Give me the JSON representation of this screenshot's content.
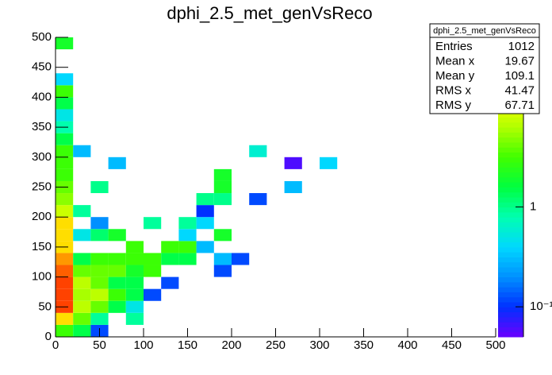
{
  "chart_data": {
    "type": "heatmap",
    "title": "dphi_2.5_met_genVsReco",
    "xbins": [
      0,
      20,
      40,
      60,
      80,
      100,
      120,
      140,
      160,
      180,
      200,
      220,
      240,
      260,
      280,
      300,
      320,
      340,
      360,
      380,
      400,
      420,
      440,
      460,
      480,
      500
    ],
    "ybins": [
      0,
      20,
      40,
      60,
      80,
      100,
      120,
      140,
      160,
      180,
      200,
      220,
      240,
      260,
      280,
      300,
      320,
      340,
      360,
      380,
      400,
      420,
      440,
      460,
      480,
      500
    ],
    "xlim": [
      0,
      500
    ],
    "ylim": [
      0,
      500
    ],
    "xticks": [
      0,
      50,
      100,
      150,
      200,
      250,
      300,
      350,
      400,
      450,
      500
    ],
    "yticks": [
      0,
      50,
      100,
      150,
      200,
      250,
      300,
      350,
      400,
      450,
      500
    ],
    "zlim": [
      0.05,
      50
    ],
    "zlog": true,
    "zticks": [
      {
        "value": 0.1,
        "label": "10⁻¹"
      },
      1
    ],
    "palette": [
      "#6a00ff",
      "#0030ff",
      "#0090ff",
      "#00d8ff",
      "#00ffb0",
      "#00ff40",
      "#40ff00",
      "#b0ff00",
      "#ffff00",
      "#ff8000",
      "#ff0000"
    ],
    "cells": [
      {
        "x": 0,
        "y": 0,
        "z": 3
      },
      {
        "x": 0,
        "y": 20,
        "z": 15
      },
      {
        "x": 0,
        "y": 40,
        "z": 35
      },
      {
        "x": 0,
        "y": 60,
        "z": 35
      },
      {
        "x": 0,
        "y": 80,
        "z": 35
      },
      {
        "x": 0,
        "y": 100,
        "z": 30
      },
      {
        "x": 0,
        "y": 120,
        "z": 22
      },
      {
        "x": 0,
        "y": 140,
        "z": 15
      },
      {
        "x": 0,
        "y": 160,
        "z": 15
      },
      {
        "x": 0,
        "y": 180,
        "z": 15
      },
      {
        "x": 0,
        "y": 200,
        "z": 8
      },
      {
        "x": 0,
        "y": 220,
        "z": 5
      },
      {
        "x": 0,
        "y": 240,
        "z": 4
      },
      {
        "x": 0,
        "y": 260,
        "z": 3
      },
      {
        "x": 0,
        "y": 280,
        "z": 3
      },
      {
        "x": 0,
        "y": 300,
        "z": 3
      },
      {
        "x": 0,
        "y": 320,
        "z": 1.5
      },
      {
        "x": 0,
        "y": 340,
        "z": 0.8
      },
      {
        "x": 0,
        "y": 360,
        "z": 0.5
      },
      {
        "x": 0,
        "y": 380,
        "z": 1.5
      },
      {
        "x": 0,
        "y": 400,
        "z": 3
      },
      {
        "x": 0,
        "y": 420,
        "z": 0.4
      },
      {
        "x": 0,
        "y": 480,
        "z": 2
      },
      {
        "x": 20,
        "y": 0,
        "z": 1.5
      },
      {
        "x": 20,
        "y": 20,
        "z": 4
      },
      {
        "x": 20,
        "y": 40,
        "z": 7
      },
      {
        "x": 20,
        "y": 60,
        "z": 6
      },
      {
        "x": 20,
        "y": 80,
        "z": 7
      },
      {
        "x": 20,
        "y": 100,
        "z": 4
      },
      {
        "x": 20,
        "y": 120,
        "z": 1.5
      },
      {
        "x": 20,
        "y": 160,
        "z": 0.5
      },
      {
        "x": 20,
        "y": 200,
        "z": 0.9
      },
      {
        "x": 20,
        "y": 300,
        "z": 0.3
      },
      {
        "x": 40,
        "y": 0,
        "z": 0.12
      },
      {
        "x": 40,
        "y": 20,
        "z": 0.9
      },
      {
        "x": 40,
        "y": 40,
        "z": 4
      },
      {
        "x": 40,
        "y": 60,
        "z": 7
      },
      {
        "x": 40,
        "y": 80,
        "z": 4
      },
      {
        "x": 40,
        "y": 100,
        "z": 4
      },
      {
        "x": 40,
        "y": 120,
        "z": 3
      },
      {
        "x": 40,
        "y": 160,
        "z": 1.2
      },
      {
        "x": 40,
        "y": 180,
        "z": 0.2
      },
      {
        "x": 40,
        "y": 240,
        "z": 1
      },
      {
        "x": 60,
        "y": 40,
        "z": 1.5
      },
      {
        "x": 60,
        "y": 60,
        "z": 3
      },
      {
        "x": 60,
        "y": 80,
        "z": 1.5
      },
      {
        "x": 60,
        "y": 100,
        "z": 4
      },
      {
        "x": 60,
        "y": 120,
        "z": 3
      },
      {
        "x": 60,
        "y": 160,
        "z": 2
      },
      {
        "x": 60,
        "y": 280,
        "z": 0.3
      },
      {
        "x": 80,
        "y": 20,
        "z": 0.9
      },
      {
        "x": 80,
        "y": 40,
        "z": 0.5
      },
      {
        "x": 80,
        "y": 60,
        "z": 1.5
      },
      {
        "x": 80,
        "y": 80,
        "z": 1.5
      },
      {
        "x": 80,
        "y": 100,
        "z": 2
      },
      {
        "x": 80,
        "y": 120,
        "z": 3
      },
      {
        "x": 80,
        "y": 140,
        "z": 3
      },
      {
        "x": 100,
        "y": 60,
        "z": 0.12
      },
      {
        "x": 100,
        "y": 100,
        "z": 3
      },
      {
        "x": 100,
        "y": 120,
        "z": 3
      },
      {
        "x": 100,
        "y": 180,
        "z": 0.9
      },
      {
        "x": 120,
        "y": 80,
        "z": 0.12
      },
      {
        "x": 120,
        "y": 120,
        "z": 1.5
      },
      {
        "x": 120,
        "y": 140,
        "z": 3
      },
      {
        "x": 140,
        "y": 120,
        "z": 1.5
      },
      {
        "x": 140,
        "y": 140,
        "z": 3
      },
      {
        "x": 140,
        "y": 160,
        "z": 0.4
      },
      {
        "x": 140,
        "y": 180,
        "z": 0.9
      },
      {
        "x": 160,
        "y": 140,
        "z": 0.3
      },
      {
        "x": 160,
        "y": 180,
        "z": 0.4
      },
      {
        "x": 160,
        "y": 200,
        "z": 0.1
      },
      {
        "x": 160,
        "y": 220,
        "z": 1
      },
      {
        "x": 180,
        "y": 100,
        "z": 0.12
      },
      {
        "x": 180,
        "y": 120,
        "z": 0.3
      },
      {
        "x": 180,
        "y": 160,
        "z": 2
      },
      {
        "x": 180,
        "y": 220,
        "z": 1
      },
      {
        "x": 180,
        "y": 240,
        "z": 2
      },
      {
        "x": 180,
        "y": 260,
        "z": 2
      },
      {
        "x": 200,
        "y": 120,
        "z": 0.12
      },
      {
        "x": 220,
        "y": 220,
        "z": 0.12
      },
      {
        "x": 220,
        "y": 300,
        "z": 0.6
      },
      {
        "x": 260,
        "y": 240,
        "z": 0.3
      },
      {
        "x": 260,
        "y": 280,
        "z": 0.06
      },
      {
        "x": 300,
        "y": 280,
        "z": 0.4
      }
    ],
    "stats": {
      "title": "dphi_2.5_met_genVsReco",
      "rows": [
        {
          "label": "Entries",
          "value": 1012
        },
        {
          "label": "Mean x",
          "value": 19.67
        },
        {
          "label": "Mean y",
          "value": 109.1
        },
        {
          "label": "RMS x",
          "value": 41.47
        },
        {
          "label": "RMS y",
          "value": 67.71
        }
      ]
    }
  }
}
